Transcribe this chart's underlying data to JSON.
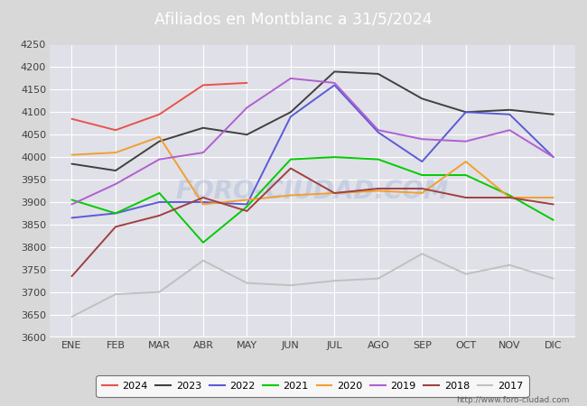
{
  "title": "Afiliados en Montblanc a 31/5/2024",
  "months": [
    "ENE",
    "FEB",
    "MAR",
    "ABR",
    "MAY",
    "JUN",
    "JUL",
    "AGO",
    "SEP",
    "OCT",
    "NOV",
    "DIC"
  ],
  "ylim": [
    3600,
    4250
  ],
  "yticks": [
    3600,
    3650,
    3700,
    3750,
    3800,
    3850,
    3900,
    3950,
    4000,
    4050,
    4100,
    4150,
    4200,
    4250
  ],
  "series": {
    "2024": {
      "color": "#e8534a",
      "data": [
        4085,
        4060,
        4095,
        4160,
        4165,
        null,
        null,
        null,
        null,
        null,
        null,
        null
      ]
    },
    "2023": {
      "color": "#404040",
      "data": [
        3985,
        3970,
        4035,
        4065,
        4050,
        4100,
        4190,
        4185,
        4130,
        4100,
        4105,
        4095
      ]
    },
    "2022": {
      "color": "#5b5bd6",
      "data": [
        3865,
        3875,
        3900,
        3900,
        3895,
        4090,
        4160,
        4055,
        3990,
        4100,
        4095,
        4000
      ]
    },
    "2021": {
      "color": "#00cc00",
      "data": [
        3905,
        3875,
        3920,
        3810,
        3890,
        3995,
        4000,
        3995,
        3960,
        3960,
        3915,
        3860
      ]
    },
    "2020": {
      "color": "#f0a030",
      "data": [
        4005,
        4010,
        4045,
        3895,
        3905,
        3915,
        3920,
        3925,
        3920,
        3990,
        3910,
        3910
      ]
    },
    "2019": {
      "color": "#b060d0",
      "data": [
        3895,
        3940,
        3995,
        4010,
        4110,
        4175,
        4165,
        4060,
        4040,
        4035,
        4060,
        4000
      ]
    },
    "2018": {
      "color": "#a04040",
      "data": [
        3735,
        3845,
        3870,
        3910,
        3880,
        3975,
        3920,
        3930,
        3930,
        3910,
        3910,
        3895
      ]
    },
    "2017": {
      "color": "#c0c0c0",
      "data": [
        3645,
        3695,
        3700,
        3770,
        3720,
        3715,
        3725,
        3730,
        3785,
        3740,
        3760,
        3730
      ]
    }
  },
  "watermark": "FORO-CIUDAD.COM",
  "url": "http://www.foro-ciudad.com",
  "bg_color": "#d8d8d8",
  "plot_bg_color": "#e0e0e8",
  "grid_color": "#ffffff",
  "title_bg": "#4472c4",
  "legend_years": [
    "2024",
    "2023",
    "2022",
    "2021",
    "2020",
    "2019",
    "2018",
    "2017"
  ]
}
